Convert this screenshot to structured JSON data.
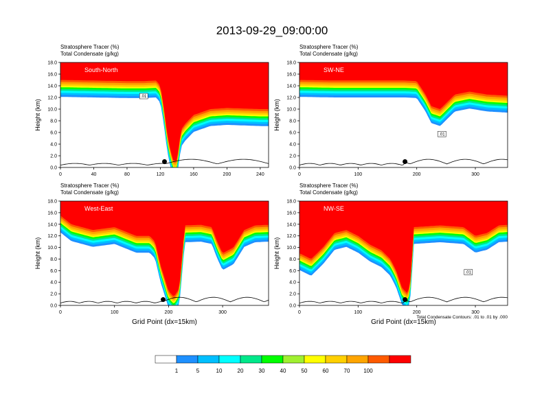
{
  "figure": {
    "title": "2013-09-29_09:00:00",
    "contour_note": "Total Condensate Contours: .01 to .01 by .000",
    "colorbar": {
      "labels": [
        "1",
        "5",
        "10",
        "20",
        "30",
        "40",
        "50",
        "60",
        "70",
        "100"
      ],
      "colors": [
        "#ffffff",
        "#1e90ff",
        "#00bfff",
        "#00ffff",
        "#00e88a",
        "#00ff00",
        "#a0f030",
        "#ffff00",
        "#ffd000",
        "#ffa500",
        "#ff5a00",
        "#ff0000"
      ]
    }
  },
  "chart_data": [
    {
      "type": "heatmap",
      "panel_label": "South-North",
      "var_line1": "Stratosphere Tracer   (%)",
      "var_line2": "Total Condensate   (g/kg)",
      "ylabel": "Height (km)",
      "xlabel": "",
      "ylim": [
        0,
        18
      ],
      "xlim": [
        0,
        250
      ],
      "xticks": [
        "0",
        "40",
        "80",
        "120",
        "160",
        "200",
        "240"
      ],
      "yticks": [
        "0.0",
        "2.0",
        "4.0",
        "6.0",
        "8.0",
        "10.0",
        "12.0",
        "14.0",
        "16.0",
        "18.0"
      ],
      "contour_label": ".01",
      "marker_x": 125,
      "tropopause_km": [
        [
          0,
          15.0
        ],
        [
          40,
          14.9
        ],
        [
          80,
          14.8
        ],
        [
          100,
          14.8
        ],
        [
          115,
          14.9
        ],
        [
          120,
          14.0
        ],
        [
          124,
          10.5
        ],
        [
          128,
          6.0
        ],
        [
          132,
          3.0
        ],
        [
          136,
          1.0
        ],
        [
          140,
          1.3
        ],
        [
          145,
          6.5
        ],
        [
          150,
          7.5
        ],
        [
          160,
          9.0
        ],
        [
          180,
          10.0
        ],
        [
          200,
          10.2
        ],
        [
          240,
          10.0
        ],
        [
          250,
          10.0
        ]
      ]
    },
    {
      "type": "heatmap",
      "panel_label": "SW-NE",
      "var_line1": "Stratosphere Tracer   (%)",
      "var_line2": "Total Condensate   (g/kg)",
      "ylabel": "Height (km)",
      "xlabel": "",
      "ylim": [
        0,
        18
      ],
      "xlim": [
        0,
        355
      ],
      "xticks": [
        "0",
        "100",
        "200",
        "300"
      ],
      "yticks": [
        "0.0",
        "2.0",
        "4.0",
        "6.0",
        "8.0",
        "10.0",
        "12.0",
        "14.0",
        "16.0",
        "18.0"
      ],
      "contour_label": ".01",
      "marker_x": 180,
      "tropopause_km": [
        [
          0,
          15.0
        ],
        [
          60,
          14.9
        ],
        [
          120,
          14.9
        ],
        [
          180,
          14.9
        ],
        [
          200,
          14.8
        ],
        [
          215,
          12.5
        ],
        [
          225,
          10.5
        ],
        [
          240,
          10.0
        ],
        [
          250,
          11.0
        ],
        [
          265,
          12.5
        ],
        [
          290,
          13.0
        ],
        [
          320,
          12.5
        ],
        [
          355,
          12.3
        ]
      ]
    },
    {
      "type": "heatmap",
      "panel_label": "West-East",
      "var_line1": "Stratosphere Tracer   (%)",
      "var_line2": "Total Condensate   (g/kg)",
      "ylabel": "Height (km)",
      "xlabel": "Grid Point (dx=15km)",
      "ylim": [
        0,
        18
      ],
      "xlim": [
        0,
        385
      ],
      "xticks": [
        "0",
        "100",
        "200",
        "300"
      ],
      "yticks": [
        "0.0",
        "2.0",
        "4.0",
        "6.0",
        "8.0",
        "10.0",
        "12.0",
        "14.0",
        "16.0",
        "18.0"
      ],
      "contour_label": "",
      "marker_x": 190,
      "tropopause_km": [
        [
          0,
          15.5
        ],
        [
          20,
          14.0
        ],
        [
          60,
          13.0
        ],
        [
          100,
          13.5
        ],
        [
          140,
          12.0
        ],
        [
          165,
          12.0
        ],
        [
          175,
          11.0
        ],
        [
          185,
          7.0
        ],
        [
          200,
          2.5
        ],
        [
          210,
          1.5
        ],
        [
          220,
          3.0
        ],
        [
          230,
          13.8
        ],
        [
          260,
          13.9
        ],
        [
          280,
          13.5
        ],
        [
          290,
          11.0
        ],
        [
          300,
          9.0
        ],
        [
          320,
          10.0
        ],
        [
          340,
          13.0
        ],
        [
          360,
          13.8
        ],
        [
          385,
          13.9
        ]
      ]
    },
    {
      "type": "heatmap",
      "panel_label": "NW-SE",
      "var_line1": "Stratosphere Tracer   (%)",
      "var_line2": "Total Condensate   (g/kg)",
      "ylabel": "Height (km)",
      "xlabel": "Grid Point (dx=15km)",
      "ylim": [
        0,
        18
      ],
      "xlim": [
        0,
        355
      ],
      "xticks": [
        "0",
        "100",
        "200",
        "300"
      ],
      "yticks": [
        "0.0",
        "2.0",
        "4.0",
        "6.0",
        "8.0",
        "10.0",
        "12.0",
        "14.0",
        "16.0",
        "18.0"
      ],
      "contour_label": ".01",
      "marker_x": 180,
      "tropopause_km": [
        [
          0,
          9.0
        ],
        [
          20,
          8.0
        ],
        [
          40,
          10.0
        ],
        [
          60,
          12.5
        ],
        [
          80,
          13.0
        ],
        [
          100,
          12.0
        ],
        [
          120,
          10.5
        ],
        [
          140,
          9.5
        ],
        [
          155,
          8.0
        ],
        [
          165,
          6.0
        ],
        [
          175,
          3.0
        ],
        [
          185,
          2.0
        ],
        [
          190,
          5.0
        ],
        [
          195,
          13.5
        ],
        [
          240,
          13.8
        ],
        [
          280,
          13.5
        ],
        [
          300,
          12.0
        ],
        [
          320,
          12.5
        ],
        [
          340,
          13.8
        ],
        [
          355,
          13.9
        ]
      ]
    }
  ]
}
